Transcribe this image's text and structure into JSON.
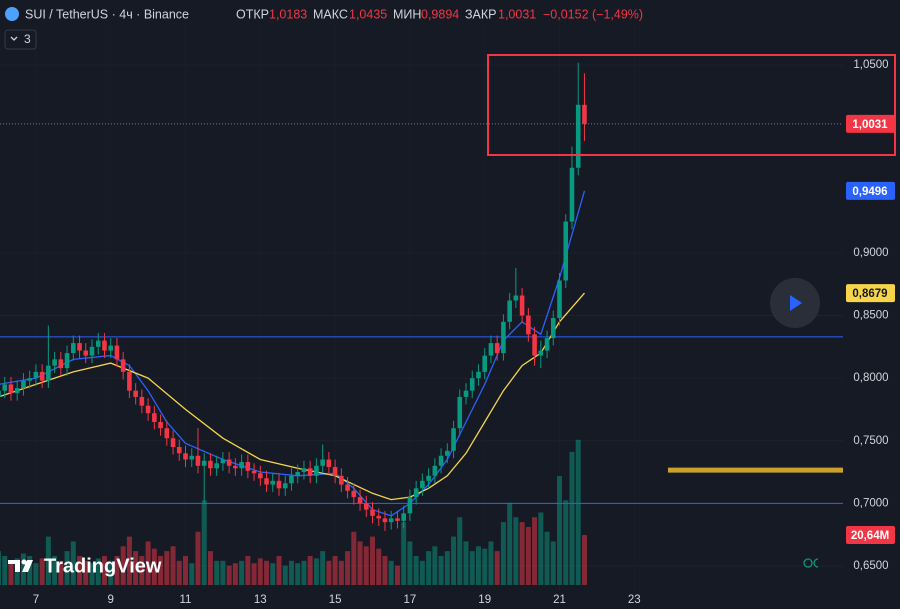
{
  "header": {
    "symbol": "SUI / TetherUS · 4ч · Binance",
    "open_label": "ОТКР",
    "open": "1,0183",
    "high_label": "МАКС",
    "high": "1,0435",
    "low_label": "МИН",
    "low": "0,9894",
    "close_label": "ЗАКР",
    "close": "1,0031",
    "change": "−0,0152 (−1,49%)",
    "indicator_count": "3",
    "watermark": "TradingView"
  },
  "chart_data": {
    "type": "candlestick",
    "x": [
      6,
      6.167,
      6.333,
      6.5,
      6.667,
      6.833,
      7,
      7.167,
      7.333,
      7.5,
      7.667,
      7.833,
      8,
      8.167,
      8.333,
      8.5,
      8.667,
      8.833,
      9,
      9.167,
      9.333,
      9.5,
      9.667,
      9.833,
      10,
      10.167,
      10.333,
      10.5,
      10.667,
      10.833,
      11,
      11.167,
      11.333,
      11.5,
      11.667,
      11.833,
      12,
      12.167,
      12.333,
      12.5,
      12.667,
      12.833,
      13,
      13.167,
      13.333,
      13.5,
      13.667,
      13.833,
      14,
      14.167,
      14.333,
      14.5,
      14.667,
      14.833,
      15,
      15.167,
      15.333,
      15.5,
      15.667,
      15.833,
      16,
      16.167,
      16.333,
      16.5,
      16.667,
      16.833,
      17,
      17.167,
      17.333,
      17.5,
      17.667,
      17.833,
      18,
      18.167,
      18.333,
      18.5,
      18.667,
      18.833,
      19,
      19.167,
      19.333,
      19.5,
      19.667,
      19.833,
      20,
      20.167,
      20.333,
      20.5,
      20.667,
      20.833,
      21,
      21.167,
      21.333,
      21.5,
      21.667
    ],
    "open": [
      0.785,
      0.79,
      0.795,
      0.788,
      0.792,
      0.798,
      0.8,
      0.805,
      0.798,
      0.81,
      0.815,
      0.808,
      0.82,
      0.828,
      0.822,
      0.818,
      0.825,
      0.83,
      0.822,
      0.826,
      0.815,
      0.805,
      0.79,
      0.785,
      0.778,
      0.772,
      0.765,
      0.76,
      0.752,
      0.745,
      0.74,
      0.735,
      0.738,
      0.73,
      0.734,
      0.728,
      0.732,
      0.735,
      0.73,
      0.728,
      0.733,
      0.726,
      0.724,
      0.72,
      0.715,
      0.718,
      0.712,
      0.716,
      0.722,
      0.725,
      0.728,
      0.722,
      0.73,
      0.735,
      0.729,
      0.722,
      0.715,
      0.71,
      0.705,
      0.7,
      0.695,
      0.69,
      0.688,
      0.685,
      0.688,
      0.686,
      0.692,
      0.705,
      0.712,
      0.718,
      0.722,
      0.73,
      0.738,
      0.742,
      0.76,
      0.785,
      0.79,
      0.8,
      0.805,
      0.818,
      0.828,
      0.82,
      0.845,
      0.862,
      0.866,
      0.85,
      0.835,
      0.818,
      0.822,
      0.832,
      0.848,
      0.878,
      0.925,
      0.968,
      1.0183
    ],
    "high": [
      0.796,
      0.801,
      0.801,
      0.798,
      0.804,
      0.806,
      0.811,
      0.811,
      0.842,
      0.821,
      0.821,
      0.826,
      0.834,
      0.834,
      0.828,
      0.831,
      0.836,
      0.836,
      0.832,
      0.832,
      0.821,
      0.811,
      0.796,
      0.791,
      0.784,
      0.778,
      0.771,
      0.766,
      0.758,
      0.751,
      0.746,
      0.744,
      0.76,
      0.74,
      0.74,
      0.738,
      0.741,
      0.741,
      0.736,
      0.739,
      0.739,
      0.732,
      0.73,
      0.726,
      0.724,
      0.724,
      0.722,
      0.728,
      0.731,
      0.734,
      0.734,
      0.736,
      0.747,
      0.741,
      0.735,
      0.728,
      0.721,
      0.716,
      0.711,
      0.706,
      0.701,
      0.696,
      0.694,
      0.694,
      0.694,
      0.698,
      0.711,
      0.718,
      0.724,
      0.728,
      0.736,
      0.744,
      0.748,
      0.766,
      0.791,
      0.796,
      0.806,
      0.811,
      0.824,
      0.834,
      0.834,
      0.851,
      0.868,
      0.888,
      0.872,
      0.856,
      0.841,
      0.83,
      0.838,
      0.854,
      0.884,
      0.931,
      0.985,
      1.052,
      1.0435
    ],
    "low": [
      0.779,
      0.784,
      0.782,
      0.782,
      0.786,
      0.792,
      0.794,
      0.792,
      0.792,
      0.804,
      0.802,
      0.802,
      0.814,
      0.816,
      0.812,
      0.812,
      0.819,
      0.816,
      0.816,
      0.809,
      0.799,
      0.784,
      0.779,
      0.772,
      0.766,
      0.759,
      0.754,
      0.746,
      0.739,
      0.734,
      0.729,
      0.729,
      0.724,
      0.7,
      0.722,
      0.722,
      0.726,
      0.724,
      0.722,
      0.722,
      0.72,
      0.718,
      0.714,
      0.709,
      0.709,
      0.706,
      0.706,
      0.71,
      0.716,
      0.719,
      0.716,
      0.716,
      0.724,
      0.723,
      0.716,
      0.709,
      0.704,
      0.699,
      0.694,
      0.689,
      0.684,
      0.682,
      0.678,
      0.679,
      0.68,
      0.68,
      0.686,
      0.699,
      0.706,
      0.712,
      0.716,
      0.724,
      0.732,
      0.736,
      0.754,
      0.779,
      0.784,
      0.794,
      0.799,
      0.812,
      0.814,
      0.814,
      0.839,
      0.856,
      0.844,
      0.829,
      0.81,
      0.808,
      0.816,
      0.826,
      0.842,
      0.872,
      0.919,
      0.962,
      0.9894
    ],
    "close": [
      0.79,
      0.795,
      0.788,
      0.792,
      0.798,
      0.8,
      0.805,
      0.798,
      0.81,
      0.815,
      0.808,
      0.82,
      0.828,
      0.822,
      0.818,
      0.825,
      0.83,
      0.822,
      0.826,
      0.815,
      0.805,
      0.79,
      0.785,
      0.778,
      0.772,
      0.765,
      0.76,
      0.752,
      0.745,
      0.74,
      0.735,
      0.738,
      0.73,
      0.734,
      0.728,
      0.732,
      0.735,
      0.73,
      0.728,
      0.733,
      0.726,
      0.724,
      0.72,
      0.715,
      0.718,
      0.712,
      0.716,
      0.722,
      0.725,
      0.728,
      0.722,
      0.73,
      0.735,
      0.729,
      0.722,
      0.715,
      0.71,
      0.705,
      0.7,
      0.695,
      0.69,
      0.688,
      0.685,
      0.688,
      0.686,
      0.692,
      0.705,
      0.712,
      0.718,
      0.722,
      0.73,
      0.738,
      0.742,
      0.76,
      0.785,
      0.79,
      0.8,
      0.805,
      0.818,
      0.828,
      0.82,
      0.845,
      0.862,
      0.866,
      0.85,
      0.835,
      0.818,
      0.822,
      0.832,
      0.848,
      0.878,
      0.925,
      0.968,
      1.0183,
      1.0031
    ],
    "volume": [
      14,
      12,
      10,
      11,
      13,
      12,
      9,
      11,
      20,
      12,
      10,
      14,
      18,
      12,
      10,
      9,
      11,
      12,
      10,
      12,
      16,
      20,
      14,
      12,
      18,
      15,
      12,
      14,
      16,
      10,
      12,
      9,
      22,
      35,
      14,
      10,
      10,
      8,
      9,
      10,
      12,
      9,
      11,
      10,
      9,
      12,
      8,
      10,
      9,
      10,
      12,
      11,
      14,
      10,
      12,
      10,
      14,
      22,
      18,
      16,
      20,
      15,
      12,
      10,
      8,
      26,
      18,
      12,
      10,
      14,
      16,
      12,
      14,
      20,
      28,
      18,
      14,
      16,
      15,
      18,
      14,
      26,
      34,
      28,
      26,
      24,
      28,
      30,
      22,
      18,
      45,
      35,
      55,
      60,
      20.64
    ],
    "up_color": "#089981",
    "down_color": "#f23645",
    "lines": [
      {
        "x": [
          6,
          7,
          8,
          9,
          9.5,
          10,
          10.5,
          11,
          12,
          13,
          14,
          15,
          15.5,
          16,
          16.5,
          17,
          17.5,
          18,
          18.5,
          19,
          19.5,
          20,
          20.5,
          21,
          21.667
        ],
        "values": [
          0.795,
          0.8,
          0.815,
          0.818,
          0.81,
          0.79,
          0.765,
          0.748,
          0.735,
          0.725,
          0.722,
          0.724,
          0.712,
          0.695,
          0.69,
          0.7,
          0.715,
          0.735,
          0.765,
          0.795,
          0.83,
          0.845,
          0.835,
          0.88,
          0.9496
        ],
        "color": "#2962ff"
      },
      {
        "x": [
          6,
          7,
          8,
          9,
          10,
          11,
          12,
          13,
          14,
          15,
          16,
          16.5,
          17,
          17.5,
          18,
          18.5,
          19,
          19.5,
          20,
          20.5,
          21,
          21.667
        ],
        "values": [
          0.785,
          0.795,
          0.805,
          0.812,
          0.8,
          0.775,
          0.752,
          0.735,
          0.728,
          0.722,
          0.708,
          0.703,
          0.705,
          0.712,
          0.722,
          0.74,
          0.765,
          0.79,
          0.81,
          0.82,
          0.845,
          0.8679
        ],
        "color": "#f7d54a"
      }
    ],
    "hlines": [
      {
        "value": 0.833,
        "color": "#2962ff"
      },
      {
        "value": 0.7,
        "color": "#2962ff"
      }
    ],
    "level": {
      "value": 0.7265,
      "x": [
        23.9,
        28.58
      ],
      "color": "#c9a227"
    },
    "badges": [
      {
        "value": 1.0031,
        "label": "1,0031",
        "color": "#f23645",
        "text_color": "#ffffff"
      },
      {
        "value": 0.9496,
        "label": "0,9496",
        "color": "#2962ff",
        "text_color": "#ffffff"
      },
      {
        "value": 0.8679,
        "label": "0,8679",
        "color": "#f7d54a",
        "text_color": "#131722"
      }
    ],
    "volume_badge": {
      "value": 20.64,
      "label": "20,64M",
      "color": "#f23645"
    },
    "xlim": [
      6.04,
      28.58
    ],
    "xticks": [
      7,
      9,
      11,
      13,
      15,
      17,
      19,
      21,
      23
    ],
    "ylim": [
      0.63,
      1.102
    ],
    "yticks": [
      {
        "value": 1.05,
        "label": "1,0500"
      },
      {
        "value": 0.9,
        "label": "0,9000"
      },
      {
        "value": 0.85,
        "label": "0,8500"
      },
      {
        "value": 0.8,
        "label": "0,8000"
      },
      {
        "value": 0.75,
        "label": "0,7500"
      },
      {
        "value": 0.7,
        "label": "0,7000"
      },
      {
        "value": 0.65,
        "label": "0,6500"
      }
    ],
    "grid": true
  }
}
